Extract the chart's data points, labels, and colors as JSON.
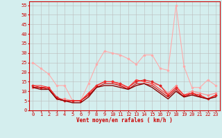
{
  "bg_color": "#d4eeee",
  "grid_color": "#bbbbbb",
  "xlabel": "Vent moyen/en rafales ( km/h )",
  "xlabel_color": "#cc0000",
  "xlabel_fontsize": 5.5,
  "tick_color": "#cc0000",
  "tick_fontsize": 5,
  "xlim": [
    -0.5,
    23.5
  ],
  "ylim": [
    0,
    57
  ],
  "yticks": [
    0,
    5,
    10,
    15,
    20,
    25,
    30,
    35,
    40,
    45,
    50,
    55
  ],
  "xticks": [
    0,
    1,
    2,
    3,
    4,
    5,
    6,
    7,
    8,
    9,
    10,
    11,
    12,
    13,
    14,
    15,
    16,
    17,
    18,
    19,
    20,
    21,
    22,
    23
  ],
  "series": [
    {
      "x": [
        0,
        1,
        2,
        3,
        4,
        5,
        6,
        7,
        8,
        9,
        10,
        11,
        12,
        13,
        14,
        15,
        16,
        17,
        18,
        19,
        20,
        21,
        22,
        23
      ],
      "y": [
        25,
        22,
        19,
        13,
        13,
        5,
        5,
        14,
        24,
        31,
        30,
        29,
        27,
        24,
        29,
        29,
        22,
        21,
        55,
        23,
        12,
        12,
        16,
        13
      ],
      "color": "#ffaaaa",
      "lw": 0.8,
      "marker": "o",
      "ms": 1.5
    },
    {
      "x": [
        0,
        1,
        2,
        3,
        4,
        5,
        6,
        7,
        8,
        9,
        10,
        11,
        12,
        13,
        14,
        15,
        16,
        17,
        18,
        19,
        20,
        21,
        22,
        23
      ],
      "y": [
        12,
        12,
        12,
        6,
        6,
        5,
        5,
        8,
        13,
        15,
        15,
        13,
        12,
        16,
        15,
        14,
        13,
        9,
        13,
        8,
        10,
        9,
        8,
        9
      ],
      "color": "#ff8888",
      "lw": 0.8,
      "marker": "o",
      "ms": 1.5
    },
    {
      "x": [
        0,
        1,
        2,
        3,
        4,
        5,
        6,
        7,
        8,
        9,
        10,
        11,
        12,
        13,
        14,
        15,
        16,
        17,
        18,
        19,
        20,
        21,
        22,
        23
      ],
      "y": [
        13,
        12,
        12,
        7,
        5,
        5,
        5,
        9,
        13,
        15,
        15,
        14,
        12,
        15,
        16,
        15,
        13,
        8,
        12,
        8,
        9,
        8,
        6,
        8
      ],
      "color": "#dd2222",
      "lw": 0.8,
      "marker": "D",
      "ms": 1.5
    },
    {
      "x": [
        0,
        1,
        2,
        3,
        4,
        5,
        6,
        7,
        8,
        9,
        10,
        11,
        12,
        13,
        14,
        15,
        16,
        17,
        18,
        19,
        20,
        21,
        22,
        23
      ],
      "y": [
        12,
        12,
        11,
        6,
        5,
        5,
        5,
        8,
        12,
        14,
        14,
        13,
        11,
        14,
        14,
        13,
        10,
        7,
        11,
        7,
        9,
        7,
        6,
        8
      ],
      "color": "#cc0000",
      "lw": 0.8,
      "marker": null,
      "ms": 0
    },
    {
      "x": [
        0,
        1,
        2,
        3,
        4,
        5,
        6,
        7,
        8,
        9,
        10,
        11,
        12,
        13,
        14,
        15,
        16,
        17,
        18,
        19,
        20,
        21,
        22,
        23
      ],
      "y": [
        13,
        13,
        12,
        6,
        5,
        5,
        5,
        9,
        13,
        15,
        15,
        14,
        12,
        16,
        15,
        14,
        11,
        8,
        12,
        8,
        9,
        8,
        6,
        8
      ],
      "color": "#ff3333",
      "lw": 0.8,
      "marker": null,
      "ms": 0
    },
    {
      "x": [
        0,
        1,
        2,
        3,
        4,
        5,
        6,
        7,
        8,
        9,
        10,
        11,
        12,
        13,
        14,
        15,
        16,
        17,
        18,
        19,
        20,
        21,
        22,
        23
      ],
      "y": [
        12,
        11,
        11,
        6,
        5,
        4,
        4,
        7,
        12,
        13,
        13,
        12,
        11,
        13,
        14,
        12,
        9,
        6,
        10,
        7,
        8,
        7,
        6,
        7
      ],
      "color": "#880000",
      "lw": 1.0,
      "marker": null,
      "ms": 0
    }
  ]
}
